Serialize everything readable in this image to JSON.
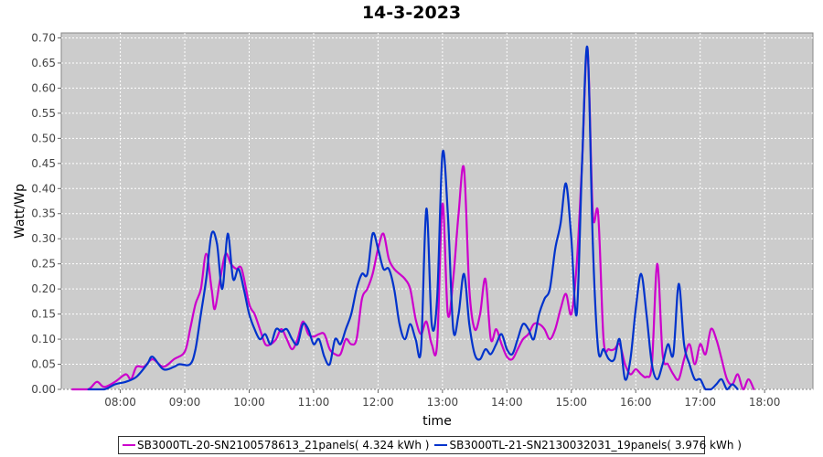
{
  "chart_data": {
    "type": "line",
    "title": "14-3-2023",
    "xlabel": "time",
    "ylabel": "Watt/Wp",
    "xlim": [
      "07:05",
      "18:45"
    ],
    "ylim": [
      0,
      0.71
    ],
    "x_ticks": [
      "08:00",
      "09:00",
      "10:00",
      "11:00",
      "12:00",
      "13:00",
      "14:00",
      "15:00",
      "16:00",
      "17:00",
      "18:00"
    ],
    "y_ticks": [
      "0.00",
      "0.05",
      "0.10",
      "0.15",
      "0.20",
      "0.25",
      "0.30",
      "0.35",
      "0.40",
      "0.45",
      "0.50",
      "0.55",
      "0.60",
      "0.65",
      "0.70"
    ],
    "grid": true,
    "background": "#cccccc",
    "legend_position": "bottom",
    "series": [
      {
        "name": "SB3000TL-20-SN2100578613_21panels( 4.324 kWh )",
        "color": "#cc00cc",
        "points": [
          [
            "07:15",
            0.0
          ],
          [
            "07:30",
            0.0
          ],
          [
            "07:38",
            0.015
          ],
          [
            "07:45",
            0.005
          ],
          [
            "07:55",
            0.015
          ],
          [
            "08:05",
            0.03
          ],
          [
            "08:10",
            0.02
          ],
          [
            "08:15",
            0.045
          ],
          [
            "08:22",
            0.045
          ],
          [
            "08:30",
            0.06
          ],
          [
            "08:40",
            0.045
          ],
          [
            "08:50",
            0.06
          ],
          [
            "09:00",
            0.075
          ],
          [
            "09:05",
            0.12
          ],
          [
            "09:10",
            0.17
          ],
          [
            "09:15",
            0.2
          ],
          [
            "09:20",
            0.27
          ],
          [
            "09:25",
            0.2
          ],
          [
            "09:28",
            0.16
          ],
          [
            "09:33",
            0.22
          ],
          [
            "09:38",
            0.27
          ],
          [
            "09:43",
            0.25
          ],
          [
            "09:48",
            0.24
          ],
          [
            "09:53",
            0.24
          ],
          [
            "10:00",
            0.17
          ],
          [
            "10:05",
            0.15
          ],
          [
            "10:10",
            0.12
          ],
          [
            "10:15",
            0.09
          ],
          [
            "10:20",
            0.09
          ],
          [
            "10:25",
            0.1
          ],
          [
            "10:30",
            0.12
          ],
          [
            "10:35",
            0.1
          ],
          [
            "10:40",
            0.08
          ],
          [
            "10:45",
            0.1
          ],
          [
            "10:50",
            0.135
          ],
          [
            "10:55",
            0.11
          ],
          [
            "11:00",
            0.105
          ],
          [
            "11:05",
            0.11
          ],
          [
            "11:10",
            0.11
          ],
          [
            "11:15",
            0.08
          ],
          [
            "11:20",
            0.07
          ],
          [
            "11:25",
            0.07
          ],
          [
            "11:30",
            0.1
          ],
          [
            "11:35",
            0.09
          ],
          [
            "11:40",
            0.1
          ],
          [
            "11:45",
            0.18
          ],
          [
            "11:50",
            0.2
          ],
          [
            "11:55",
            0.23
          ],
          [
            "12:00",
            0.28
          ],
          [
            "12:05",
            0.31
          ],
          [
            "12:10",
            0.26
          ],
          [
            "12:15",
            0.24
          ],
          [
            "12:20",
            0.23
          ],
          [
            "12:25",
            0.22
          ],
          [
            "12:30",
            0.2
          ],
          [
            "12:35",
            0.14
          ],
          [
            "12:40",
            0.11
          ],
          [
            "12:45",
            0.135
          ],
          [
            "12:50",
            0.09
          ],
          [
            "12:55",
            0.09
          ],
          [
            "13:00",
            0.37
          ],
          [
            "13:05",
            0.15
          ],
          [
            "13:10",
            0.22
          ],
          [
            "13:15",
            0.35
          ],
          [
            "13:20",
            0.44
          ],
          [
            "13:25",
            0.2
          ],
          [
            "13:30",
            0.12
          ],
          [
            "13:35",
            0.15
          ],
          [
            "13:40",
            0.22
          ],
          [
            "13:45",
            0.1
          ],
          [
            "13:50",
            0.12
          ],
          [
            "13:55",
            0.09
          ],
          [
            "14:00",
            0.065
          ],
          [
            "14:05",
            0.06
          ],
          [
            "14:10",
            0.08
          ],
          [
            "14:15",
            0.1
          ],
          [
            "14:20",
            0.11
          ],
          [
            "14:25",
            0.13
          ],
          [
            "14:30",
            0.13
          ],
          [
            "14:35",
            0.12
          ],
          [
            "14:40",
            0.1
          ],
          [
            "14:45",
            0.12
          ],
          [
            "14:50",
            0.16
          ],
          [
            "14:55",
            0.19
          ],
          [
            "15:00",
            0.15
          ],
          [
            "15:05",
            0.25
          ],
          [
            "15:10",
            0.45
          ],
          [
            "15:15",
            0.68
          ],
          [
            "15:20",
            0.35
          ],
          [
            "15:25",
            0.35
          ],
          [
            "15:30",
            0.1
          ],
          [
            "15:35",
            0.08
          ],
          [
            "15:40",
            0.08
          ],
          [
            "15:45",
            0.09
          ],
          [
            "15:50",
            0.05
          ],
          [
            "15:55",
            0.03
          ],
          [
            "16:00",
            0.04
          ],
          [
            "16:05",
            0.03
          ],
          [
            "16:10",
            0.025
          ],
          [
            "16:15",
            0.05
          ],
          [
            "16:20",
            0.25
          ],
          [
            "16:25",
            0.07
          ],
          [
            "16:30",
            0.05
          ],
          [
            "16:35",
            0.03
          ],
          [
            "16:40",
            0.02
          ],
          [
            "16:45",
            0.06
          ],
          [
            "16:50",
            0.09
          ],
          [
            "16:55",
            0.05
          ],
          [
            "17:00",
            0.09
          ],
          [
            "17:05",
            0.07
          ],
          [
            "17:10",
            0.12
          ],
          [
            "17:15",
            0.1
          ],
          [
            "17:20",
            0.06
          ],
          [
            "17:25",
            0.02
          ],
          [
            "17:30",
            0.01
          ],
          [
            "17:35",
            0.03
          ],
          [
            "17:40",
            0.0
          ],
          [
            "17:45",
            0.02
          ],
          [
            "17:50",
            0.0
          ]
        ]
      },
      {
        "name": "SB3000TL-21-SN2130032031_19panels( 3.976 kWh )",
        "color": "#0033cc",
        "points": [
          [
            "07:30",
            0.0
          ],
          [
            "07:45",
            0.0
          ],
          [
            "07:55",
            0.01
          ],
          [
            "08:05",
            0.015
          ],
          [
            "08:15",
            0.025
          ],
          [
            "08:25",
            0.05
          ],
          [
            "08:30",
            0.065
          ],
          [
            "08:40",
            0.04
          ],
          [
            "08:50",
            0.045
          ],
          [
            "08:55",
            0.05
          ],
          [
            "09:05",
            0.05
          ],
          [
            "09:10",
            0.08
          ],
          [
            "09:15",
            0.15
          ],
          [
            "09:20",
            0.22
          ],
          [
            "09:25",
            0.31
          ],
          [
            "09:30",
            0.29
          ],
          [
            "09:35",
            0.2
          ],
          [
            "09:40",
            0.31
          ],
          [
            "09:45",
            0.22
          ],
          [
            "09:50",
            0.24
          ],
          [
            "09:55",
            0.2
          ],
          [
            "10:00",
            0.15
          ],
          [
            "10:05",
            0.12
          ],
          [
            "10:10",
            0.1
          ],
          [
            "10:15",
            0.11
          ],
          [
            "10:20",
            0.09
          ],
          [
            "10:25",
            0.12
          ],
          [
            "10:30",
            0.115
          ],
          [
            "10:35",
            0.12
          ],
          [
            "10:40",
            0.1
          ],
          [
            "10:45",
            0.09
          ],
          [
            "10:50",
            0.13
          ],
          [
            "10:55",
            0.12
          ],
          [
            "11:00",
            0.09
          ],
          [
            "11:05",
            0.1
          ],
          [
            "11:10",
            0.065
          ],
          [
            "11:15",
            0.05
          ],
          [
            "11:20",
            0.1
          ],
          [
            "11:25",
            0.09
          ],
          [
            "11:30",
            0.12
          ],
          [
            "11:35",
            0.15
          ],
          [
            "11:40",
            0.2
          ],
          [
            "11:45",
            0.23
          ],
          [
            "11:50",
            0.23
          ],
          [
            "11:55",
            0.31
          ],
          [
            "12:00",
            0.28
          ],
          [
            "12:05",
            0.24
          ],
          [
            "12:10",
            0.24
          ],
          [
            "12:15",
            0.2
          ],
          [
            "12:20",
            0.13
          ],
          [
            "12:25",
            0.1
          ],
          [
            "12:30",
            0.13
          ],
          [
            "12:35",
            0.1
          ],
          [
            "12:40",
            0.08
          ],
          [
            "12:45",
            0.36
          ],
          [
            "12:50",
            0.13
          ],
          [
            "12:55",
            0.18
          ],
          [
            "13:00",
            0.47
          ],
          [
            "13:05",
            0.35
          ],
          [
            "13:10",
            0.12
          ],
          [
            "13:15",
            0.15
          ],
          [
            "13:20",
            0.23
          ],
          [
            "13:25",
            0.13
          ],
          [
            "13:30",
            0.07
          ],
          [
            "13:35",
            0.06
          ],
          [
            "13:40",
            0.08
          ],
          [
            "13:45",
            0.07
          ],
          [
            "13:50",
            0.09
          ],
          [
            "13:55",
            0.11
          ],
          [
            "14:00",
            0.08
          ],
          [
            "14:05",
            0.07
          ],
          [
            "14:10",
            0.1
          ],
          [
            "14:15",
            0.13
          ],
          [
            "14:20",
            0.12
          ],
          [
            "14:25",
            0.1
          ],
          [
            "14:30",
            0.15
          ],
          [
            "14:35",
            0.18
          ],
          [
            "14:40",
            0.2
          ],
          [
            "14:45",
            0.28
          ],
          [
            "14:50",
            0.33
          ],
          [
            "14:55",
            0.41
          ],
          [
            "15:00",
            0.3
          ],
          [
            "15:05",
            0.15
          ],
          [
            "15:10",
            0.45
          ],
          [
            "15:15",
            0.68
          ],
          [
            "15:20",
            0.29
          ],
          [
            "15:25",
            0.08
          ],
          [
            "15:30",
            0.08
          ],
          [
            "15:35",
            0.06
          ],
          [
            "15:40",
            0.06
          ],
          [
            "15:45",
            0.1
          ],
          [
            "15:50",
            0.02
          ],
          [
            "15:55",
            0.06
          ],
          [
            "16:00",
            0.16
          ],
          [
            "16:05",
            0.23
          ],
          [
            "16:10",
            0.15
          ],
          [
            "16:15",
            0.05
          ],
          [
            "16:20",
            0.02
          ],
          [
            "16:25",
            0.05
          ],
          [
            "16:30",
            0.09
          ],
          [
            "16:35",
            0.07
          ],
          [
            "16:40",
            0.21
          ],
          [
            "16:45",
            0.09
          ],
          [
            "16:50",
            0.05
          ],
          [
            "16:55",
            0.02
          ],
          [
            "17:00",
            0.02
          ],
          [
            "17:05",
            0.0
          ],
          [
            "17:10",
            0.0
          ],
          [
            "17:15",
            0.01
          ],
          [
            "17:20",
            0.02
          ],
          [
            "17:25",
            0.0
          ],
          [
            "17:30",
            0.01
          ],
          [
            "17:35",
            0.0
          ]
        ]
      }
    ]
  }
}
